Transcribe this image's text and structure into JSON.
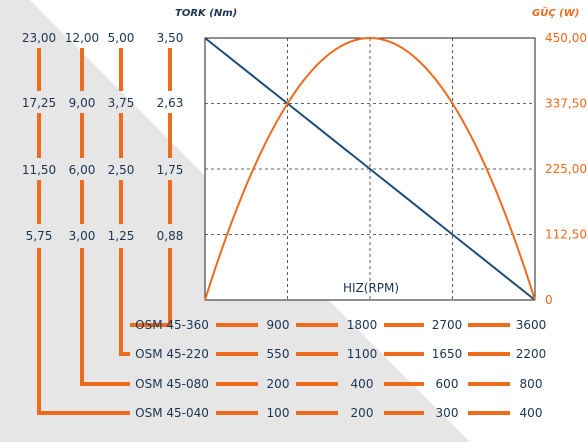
{
  "chart_data": {
    "type": "line",
    "left_axis_title": "TORK (Nm)",
    "right_axis_title": "GÜÇ (W)",
    "xlabel": "HIZ(RPM)",
    "x_fraction_ticks": [
      0,
      0.25,
      0.5,
      0.75,
      1.0
    ],
    "power_ticks": [
      "0",
      "112,50",
      "225,00",
      "337,50",
      "450,00"
    ],
    "torque_columns": [
      {
        "model": "OSM 45-040",
        "ticks": [
          "23,00",
          "17,25",
          "11,50",
          "5,75"
        ]
      },
      {
        "model": "OSM 45-080",
        "ticks": [
          "12,00",
          "9,00",
          "6,00",
          "3,00"
        ]
      },
      {
        "model": "OSM 45-220",
        "ticks": [
          "5,00",
          "3,75",
          "2,50",
          "1,25"
        ]
      },
      {
        "model": "OSM 45-360",
        "ticks": [
          "3,50",
          "2,63",
          "1,75",
          "0,88"
        ]
      }
    ],
    "speed_rows": [
      {
        "model": "OSM 45-360",
        "speeds": [
          "900",
          "1800",
          "2700",
          "3600"
        ]
      },
      {
        "model": "OSM 45-220",
        "speeds": [
          "550",
          "1100",
          "1650",
          "2200"
        ]
      },
      {
        "model": "OSM 45-080",
        "speeds": [
          "200",
          "400",
          "600",
          "800"
        ]
      },
      {
        "model": "OSM 45-040",
        "speeds": [
          "100",
          "200",
          "300",
          "400"
        ]
      }
    ],
    "series": [
      {
        "name": "TORK (Nm)",
        "color": "#1f4e74",
        "shape": "linear-decreasing",
        "x": [
          0,
          0.25,
          0.5,
          0.75,
          1.0
        ],
        "y": [
          1.0,
          0.75,
          0.5,
          0.25,
          0
        ]
      },
      {
        "name": "GÜÇ (W)",
        "color": "#ee6a1d",
        "shape": "parabola",
        "x": [
          0,
          0.25,
          0.5,
          0.75,
          1.0
        ],
        "y": [
          0,
          0.75,
          1.0,
          0.75,
          0
        ]
      }
    ],
    "grid": "dashed"
  }
}
